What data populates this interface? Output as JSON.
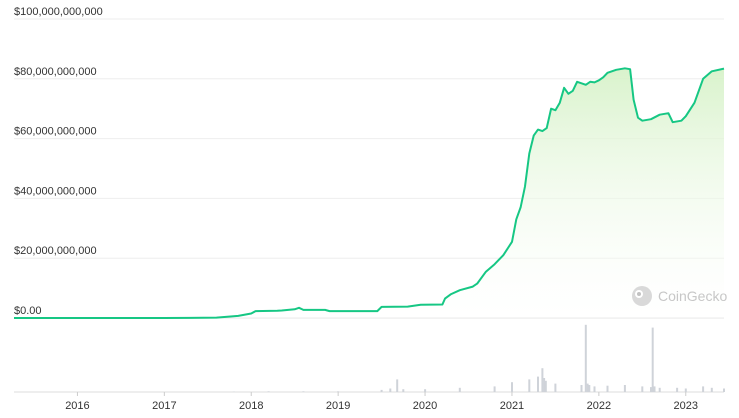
{
  "chart_data": {
    "type": "area",
    "title": "",
    "xlabel": "",
    "ylabel": "",
    "x_ticks": [
      "2016",
      "2017",
      "2018",
      "2019",
      "2020",
      "2021",
      "2022",
      "2023"
    ],
    "y_ticks": [
      "$0.00",
      "$20,000,000,000",
      "$40,000,000,000",
      "$60,000,000,000",
      "$80,000,000,000",
      "$100,000,000,000"
    ],
    "ylim": [
      0,
      100000000000
    ],
    "xlim": [
      2015.27,
      2023.44
    ],
    "grid": true,
    "legend": "none",
    "colors": {
      "line": "#16c784",
      "fill_top": "#d7f2c9",
      "volume": "#cfd3d9"
    },
    "series": [
      {
        "x": [
          2015.27,
          2016.0,
          2016.5,
          2017.0,
          2017.3,
          2017.6,
          2017.85,
          2018.0,
          2018.05,
          2018.3,
          2018.35,
          2018.5,
          2018.55,
          2018.6,
          2018.85,
          2018.9,
          2019.0,
          2019.2,
          2019.45,
          2019.5,
          2019.8,
          2019.95,
          2020.2,
          2020.23,
          2020.3,
          2020.4,
          2020.55,
          2020.6,
          2020.7,
          2020.8,
          2020.9,
          2021.0,
          2021.05,
          2021.1,
          2021.15,
          2021.2,
          2021.25,
          2021.3,
          2021.35,
          2021.4,
          2021.45,
          2021.5,
          2021.55,
          2021.6,
          2021.65,
          2021.7,
          2021.75,
          2021.8,
          2021.85,
          2021.9,
          2021.95,
          2022.0,
          2022.05,
          2022.1,
          2022.2,
          2022.3,
          2022.36,
          2022.38,
          2022.4,
          2022.45,
          2022.5,
          2022.6,
          2022.7,
          2022.8,
          2022.85,
          2022.95,
          2023.0,
          2023.1,
          2023.2,
          2023.3,
          2023.44
        ],
        "values": [
          0,
          0,
          0,
          0,
          30000000,
          150000000,
          700000000,
          1500000000,
          2300000000,
          2400000000,
          2500000000,
          2900000000,
          3400000000,
          2700000000,
          2700000000,
          2300000000,
          2300000000,
          2300000000,
          2300000000,
          3700000000,
          3800000000,
          4400000000,
          4500000000,
          6500000000,
          8000000000,
          9300000000,
          10500000000,
          11500000000,
          15500000000,
          18000000000,
          21000000000,
          25500000000,
          33000000000,
          37000000000,
          44000000000,
          55000000000,
          61000000000,
          63000000000,
          62500000000,
          63500000000,
          70000000000,
          69500000000,
          72000000000,
          77000000000,
          75000000000,
          76000000000,
          79000000000,
          78500000000,
          78000000000,
          79000000000,
          78800000000,
          79500000000,
          80500000000,
          82000000000,
          83000000000,
          83500000000,
          83200000000,
          78000000000,
          73000000000,
          67000000000,
          66000000000,
          66500000000,
          68000000000,
          68500000000,
          65500000000,
          66000000000,
          67500000000,
          72000000000,
          80000000000,
          82500000000,
          83400000000
        ]
      }
    ],
    "volume": {
      "ylim": [
        0,
        100
      ],
      "x": [
        2015.27,
        2016.0,
        2017.0,
        2017.8,
        2018.2,
        2018.6,
        2019.0,
        2019.5,
        2019.6,
        2019.68,
        2019.75,
        2020.0,
        2020.4,
        2020.8,
        2021.0,
        2021.2,
        2021.3,
        2021.35,
        2021.37,
        2021.39,
        2021.5,
        2021.8,
        2021.85,
        2021.87,
        2021.89,
        2021.95,
        2022.1,
        2022.3,
        2022.5,
        2022.6,
        2022.62,
        2022.64,
        2022.7,
        2022.9,
        2023.0,
        2023.2,
        2023.3,
        2023.44
      ],
      "values": [
        0,
        0,
        0,
        0.5,
        1,
        1,
        1,
        3,
        5,
        18,
        4,
        4,
        6,
        8,
        14,
        18,
        22,
        34,
        20,
        16,
        12,
        10,
        96,
        12,
        10,
        8,
        9,
        10,
        8,
        7,
        92,
        8,
        6,
        6,
        5,
        8,
        6,
        5
      ]
    }
  },
  "watermark": {
    "text": "CoinGecko",
    "icon": "coingecko-logo-icon"
  }
}
